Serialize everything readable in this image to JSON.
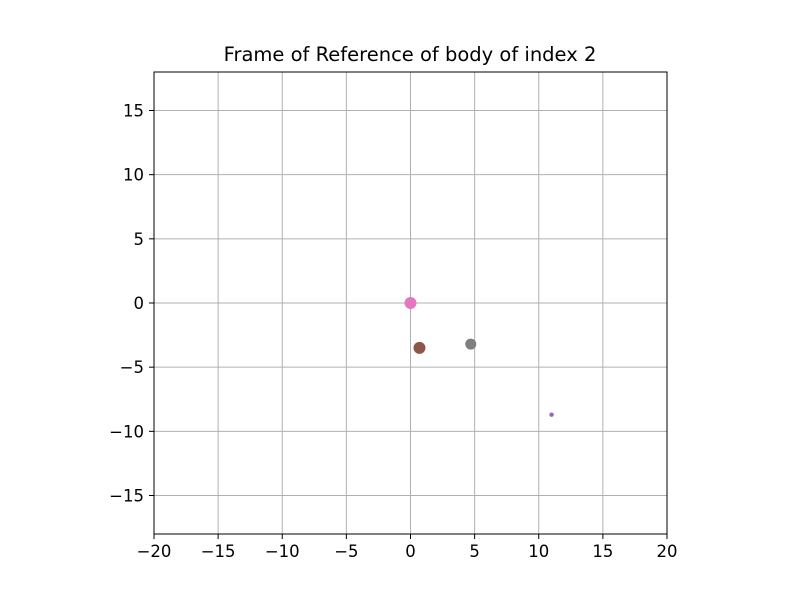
{
  "chart_data": {
    "type": "scatter",
    "title": "Frame of Reference of body of index 2",
    "xlabel": "",
    "ylabel": "",
    "xlim": [
      -20,
      20
    ],
    "ylim": [
      -18,
      18
    ],
    "xticks": [
      -20,
      -15,
      -10,
      -5,
      0,
      5,
      10,
      15,
      20
    ],
    "yticks": [
      -15,
      -10,
      -5,
      0,
      5,
      10,
      15
    ],
    "xtick_labels": [
      "−20",
      "−15",
      "−10",
      "−5",
      "0",
      "5",
      "10",
      "15",
      "20"
    ],
    "ytick_labels": [
      "−15",
      "−10",
      "−5",
      "0",
      "5",
      "10",
      "15"
    ],
    "grid": true,
    "points": [
      {
        "x": 0.0,
        "y": 0.0,
        "color": "#e377c2",
        "size": "large"
      },
      {
        "x": 0.7,
        "y": -3.5,
        "color": "#8c564b",
        "size": "large"
      },
      {
        "x": 4.7,
        "y": -3.2,
        "color": "#7f7f7f",
        "size": "medium"
      },
      {
        "x": 11.0,
        "y": -8.7,
        "color": "#9467bd",
        "size": "tiny"
      }
    ]
  }
}
